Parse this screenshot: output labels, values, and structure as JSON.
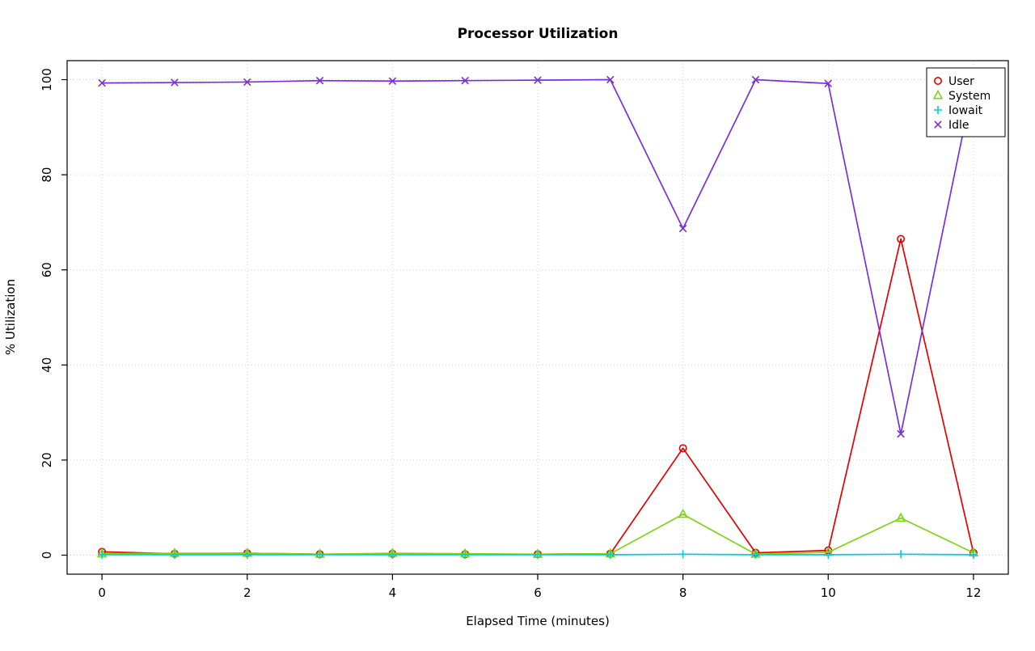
{
  "chart_data": {
    "type": "line",
    "title": "Processor Utilization",
    "xlabel": "Elapsed Time (minutes)",
    "ylabel": "% Utilization",
    "xlim": [
      0,
      12
    ],
    "ylim": [
      0,
      100
    ],
    "xticks": [
      0,
      2,
      4,
      6,
      8,
      10,
      12
    ],
    "yticks": [
      0,
      20,
      40,
      60,
      80,
      100
    ],
    "grid": {
      "style": "dotted",
      "color": "#D3D3D3"
    },
    "legend": {
      "position": "top-right"
    },
    "x": [
      0,
      1,
      2,
      3,
      4,
      5,
      6,
      7,
      8,
      9,
      10,
      11,
      12
    ],
    "series": [
      {
        "name": "User",
        "color": "#E50000",
        "marker": "circle",
        "values": [
          0.7,
          0.3,
          0.4,
          0.2,
          0.3,
          0.2,
          0.2,
          0.3,
          22.5,
          0.5,
          1.0,
          66.5,
          0.5
        ]
      },
      {
        "name": "System",
        "color": "#7CD612",
        "marker": "triangle",
        "values": [
          0.3,
          0.4,
          0.4,
          0.2,
          0.4,
          0.3,
          0.2,
          0.3,
          8.6,
          0.2,
          0.6,
          7.8,
          0.5
        ]
      },
      {
        "name": "Iowait",
        "color": "#00CDE6",
        "marker": "plus",
        "values": [
          0.1,
          0.1,
          0.1,
          0.1,
          0.1,
          0.1,
          0.1,
          0.1,
          0.2,
          0.1,
          0.1,
          0.2,
          0.1
        ]
      },
      {
        "name": "Idle",
        "color": "#7A2FD9",
        "marker": "x",
        "values": [
          99.3,
          99.4,
          99.5,
          99.8,
          99.7,
          99.8,
          99.9,
          100,
          68.7,
          100,
          99.2,
          25.5,
          99.4
        ]
      }
    ]
  }
}
